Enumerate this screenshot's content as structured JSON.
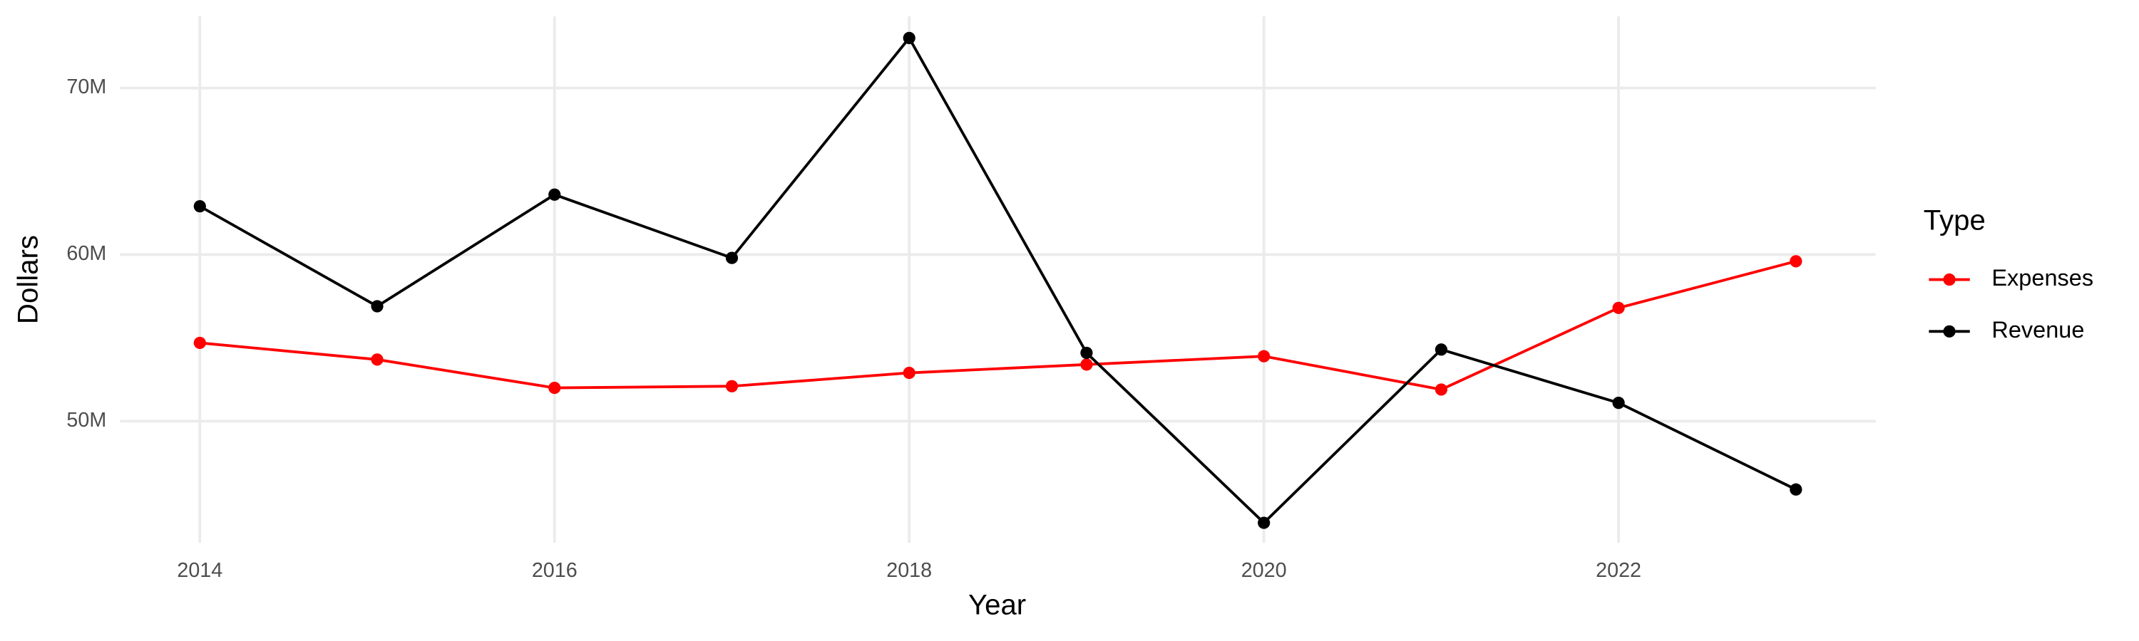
{
  "chart_data": {
    "type": "line",
    "x_label": "Year",
    "y_label": "Dollars",
    "legend_title": "Type",
    "legend_position": "right",
    "grid": true,
    "x": [
      2014,
      2015,
      2016,
      2017,
      2018,
      2019,
      2020,
      2021,
      2022,
      2023
    ],
    "series": [
      {
        "name": "Expenses",
        "color": "#ff0000",
        "values": [
          54700000,
          53700000,
          52000000,
          52100000,
          52900000,
          53400000,
          53900000,
          51900000,
          56800000,
          59600000
        ]
      },
      {
        "name": "Revenue",
        "color": "#000000",
        "values": [
          62900000,
          56900000,
          63600000,
          59800000,
          73000000,
          54100000,
          43900000,
          54300000,
          51100000,
          45900000
        ]
      }
    ],
    "xlim": [
      2013.55,
      2023.45
    ],
    "xticks": [
      2014,
      2016,
      2018,
      2020,
      2022
    ],
    "ylim": [
      42700000,
      74300000
    ],
    "yticks": [
      {
        "value": 50000000,
        "label": "50M"
      },
      {
        "value": 60000000,
        "label": "60M"
      },
      {
        "value": 70000000,
        "label": "70M"
      }
    ]
  }
}
